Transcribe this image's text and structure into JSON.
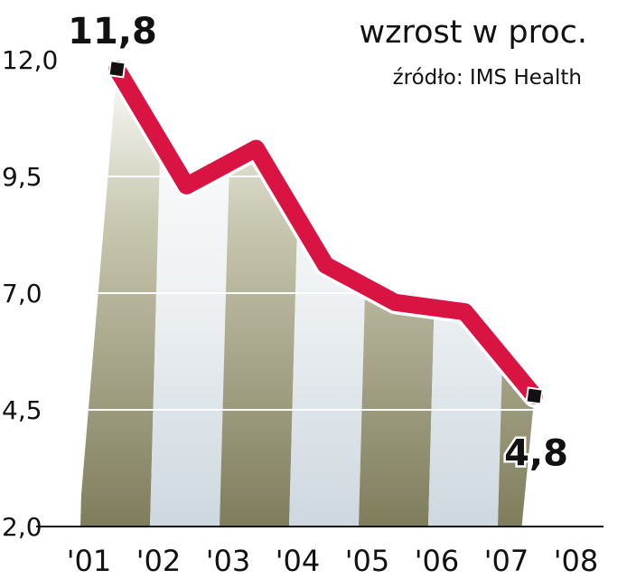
{
  "chart_data": {
    "type": "line",
    "title": "wzrost w proc.",
    "subtitle": "źródło: IMS Health",
    "xlabel": "",
    "ylabel": "",
    "categories": [
      "'01",
      "'02",
      "'03",
      "'04",
      "'05",
      "'06",
      "'07",
      "'08"
    ],
    "x_positions": [
      1.5,
      2.0,
      2.5,
      3.0,
      3.5,
      4.0,
      4.5,
      5.0,
      5.5,
      6.0,
      6.5,
      7.0,
      7.5,
      8.0
    ],
    "series": [
      {
        "values": [
          11.8,
          9.3,
          10.1,
          7.6,
          6.8,
          6.6,
          4.8
        ]
      }
    ],
    "x": [
      1.5,
      2.5,
      3.5,
      4.5,
      5.5,
      6.5,
      7.5
    ],
    "y_ticks": [
      "12,0",
      "9,5",
      "7,0",
      "4,5",
      "2,0"
    ],
    "y_tick_values": [
      12.0,
      9.5,
      7.0,
      4.5,
      2.0
    ],
    "ylim": [
      2.0,
      12.0
    ],
    "annotations": [
      {
        "text": "11,8",
        "x": 1.5,
        "y": 11.8
      },
      {
        "text": "4,8",
        "x": 7.5,
        "y": 4.8
      }
    ],
    "grid": true,
    "colors": {
      "line": "#d91443",
      "line_edge": "#ffffff",
      "band_dark": "#8a8a66",
      "band_light": "#dfe6ea",
      "marker": "#111111",
      "text": "#111111",
      "axis": "#111111"
    }
  }
}
